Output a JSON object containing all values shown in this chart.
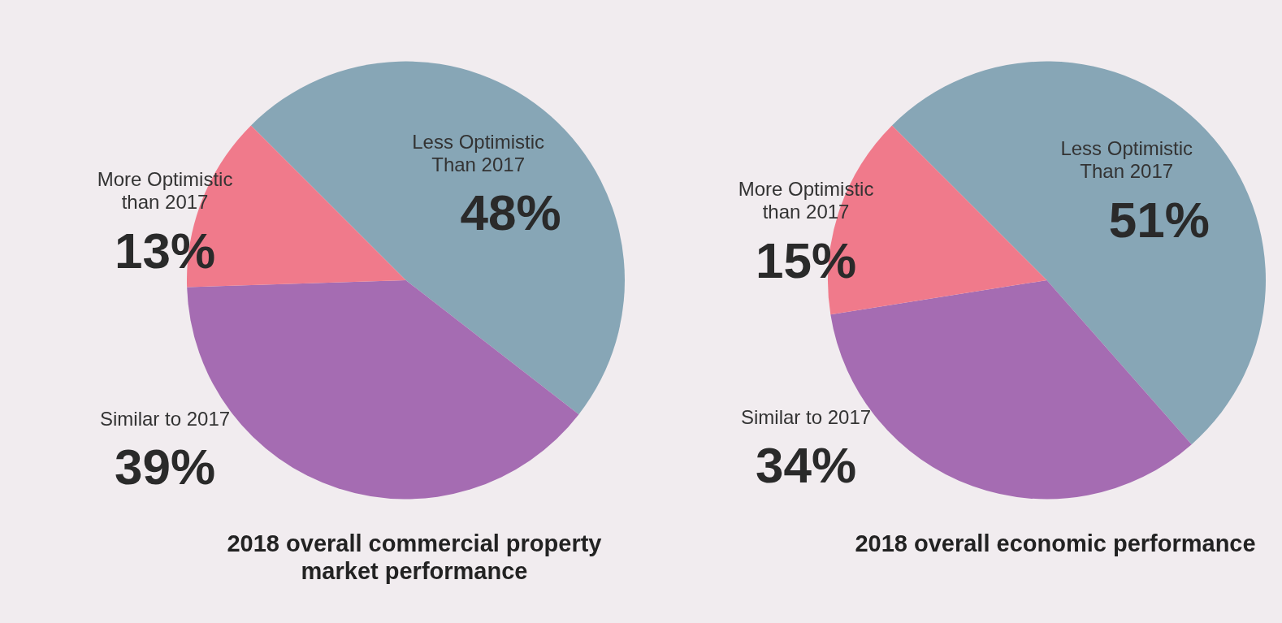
{
  "chart_data": [
    {
      "type": "pie",
      "title": "2018 overall commercial property market performance",
      "categories": [
        "Less Optimistic Than 2017",
        "Similar to 2017",
        "More Optimistic than 2017"
      ],
      "values": [
        48,
        39,
        13
      ],
      "colors": [
        "#87a6b6",
        "#a56cb2",
        "#f07a8b"
      ],
      "value_labels": [
        "48%",
        "39%",
        "13%"
      ]
    },
    {
      "type": "pie",
      "title": "2018 overall economic performance",
      "categories": [
        "Less Optimistic Than 2017",
        "Similar to 2017",
        "More Optimistic than 2017"
      ],
      "values": [
        51,
        34,
        15
      ],
      "colors": [
        "#87a6b6",
        "#a56cb2",
        "#f07a8b"
      ],
      "value_labels": [
        "51%",
        "34%",
        "15%"
      ]
    }
  ]
}
